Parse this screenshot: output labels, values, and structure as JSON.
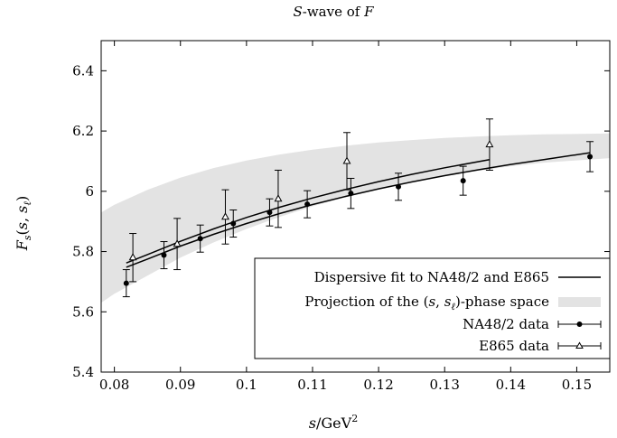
{
  "chart_data": {
    "type": "scatter",
    "title": "S-wave of F",
    "title_parts": {
      "italic": "S",
      "text": "-wave of ",
      "italic2": "F"
    },
    "xlabel": "s/GeV^2",
    "ylabel": "F_s(s, s_ℓ)",
    "xlim": [
      0.078,
      0.155
    ],
    "ylim": [
      5.4,
      6.5
    ],
    "x_ticks": [
      0.08,
      0.09,
      0.1,
      0.11,
      0.12,
      0.13,
      0.14,
      0.15
    ],
    "x_tick_labels": [
      "0.08",
      "0.09",
      "0.1",
      "0.11",
      "0.12",
      "0.13",
      "0.14",
      "0.15"
    ],
    "y_ticks": [
      5.4,
      5.6,
      5.8,
      6.0,
      6.2,
      6.4
    ],
    "y_tick_labels": [
      "5.4",
      "5.6",
      "5.8",
      "6",
      "6.2",
      "6.4"
    ],
    "grid": false,
    "legend_position": "bottom-right",
    "legend": [
      "Dispersive fit to NA48/2 and E865",
      "Projection of the (s, s_ℓ)-phase space",
      "NA48/2 data",
      "E865 data"
    ],
    "legend_math": {
      "phase_space_prefix": "Projection of the (",
      "phase_space_s": "s",
      "phase_space_sep": ", ",
      "phase_space_sl": "s",
      "phase_space_sub": "ℓ",
      "phase_space_suffix": ")-phase space"
    },
    "series": [
      {
        "name": "NA48/2 data",
        "marker": "circle",
        "x": [
          0.0818,
          0.0875,
          0.093,
          0.098,
          0.1035,
          0.1092,
          0.1158,
          0.123,
          0.1328,
          0.152
        ],
        "y": [
          5.695,
          5.788,
          5.843,
          5.893,
          5.93,
          5.957,
          5.993,
          6.015,
          6.035,
          6.115
        ],
        "err": [
          0.045,
          0.045,
          0.045,
          0.045,
          0.045,
          0.045,
          0.05,
          0.045,
          0.048,
          0.05
        ]
      },
      {
        "name": "E865 data",
        "marker": "triangle",
        "x": [
          0.0828,
          0.0895,
          0.0968,
          0.1048,
          0.1152,
          0.1368
        ],
        "y": [
          5.78,
          5.825,
          5.915,
          5.975,
          6.1,
          6.155
        ],
        "err": [
          0.08,
          0.085,
          0.09,
          0.095,
          0.095,
          0.085
        ]
      },
      {
        "name": "Dispersive fit to NA48/2 and E865",
        "kind": "curve",
        "curves": [
          {
            "x": [
              0.0818,
              0.085,
              0.09,
              0.095,
              0.1,
              0.105,
              0.11,
              0.115,
              0.12,
              0.125,
              0.13,
              0.135,
              0.14,
              0.145,
              0.152
            ],
            "y": [
              5.748,
              5.775,
              5.818,
              5.857,
              5.893,
              5.926,
              5.956,
              5.983,
              6.008,
              6.031,
              6.052,
              6.071,
              6.089,
              6.105,
              6.128
            ]
          },
          {
            "x": [
              0.0818,
              0.085,
              0.09,
              0.095,
              0.1,
              0.105,
              0.11,
              0.115,
              0.12,
              0.125,
              0.13,
              0.1368
            ],
            "y": [
              5.762,
              5.79,
              5.834,
              5.875,
              5.913,
              5.947,
              5.978,
              6.006,
              6.032,
              6.056,
              6.078,
              6.105
            ]
          }
        ]
      },
      {
        "name": "Projection of the (s, s_ℓ)-phase space",
        "kind": "band",
        "x": [
          0.078,
          0.08,
          0.085,
          0.09,
          0.095,
          0.1,
          0.105,
          0.11,
          0.115,
          0.12,
          0.125,
          0.13,
          0.135,
          0.14,
          0.145,
          0.155
        ],
        "lower": [
          5.63,
          5.66,
          5.72,
          5.78,
          5.83,
          5.875,
          5.915,
          5.95,
          5.98,
          6.007,
          6.03,
          6.05,
          6.068,
          6.083,
          6.095,
          6.11
        ],
        "upper": [
          5.93,
          5.955,
          6.005,
          6.045,
          6.077,
          6.102,
          6.122,
          6.138,
          6.151,
          6.162,
          6.17,
          6.177,
          6.182,
          6.186,
          6.189,
          6.192
        ]
      }
    ]
  },
  "colors": {
    "band": "#e3e3e3",
    "line": "#000000",
    "axis": "#000000"
  }
}
